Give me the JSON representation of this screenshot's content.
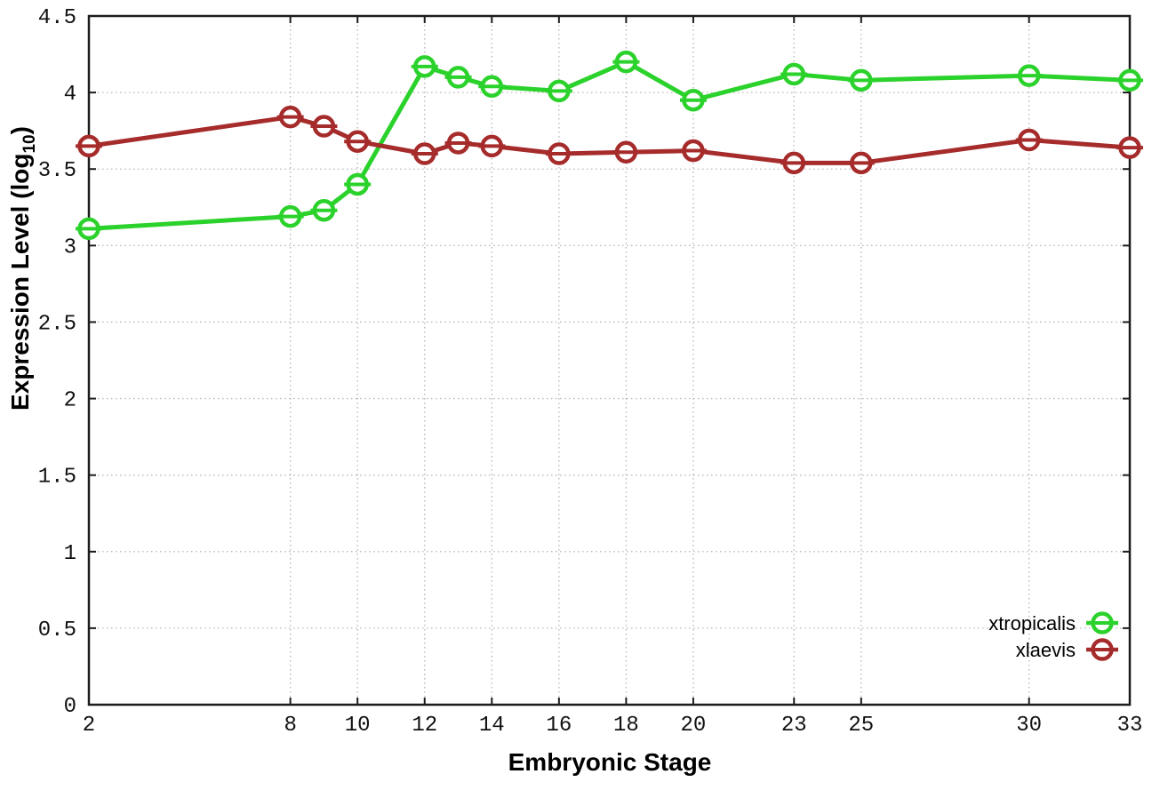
{
  "chart_data": {
    "type": "line",
    "title": "",
    "xlabel": "Embryonic Stage",
    "ylabel": {
      "prefix": "Expression Level (log",
      "sub": "10",
      "suffix": ")"
    },
    "x": [
      2,
      8,
      9,
      10,
      12,
      13,
      14,
      16,
      18,
      20,
      23,
      25,
      30,
      33
    ],
    "series": [
      {
        "name": "xtropicalis",
        "color": "#2bd22b",
        "marker": "open-circle-with-dash",
        "values": [
          3.11,
          3.19,
          3.23,
          3.4,
          4.17,
          4.1,
          4.04,
          4.01,
          4.2,
          3.95,
          4.12,
          4.08,
          4.11,
          4.08
        ]
      },
      {
        "name": "xlaevis",
        "color": "#a62b2b",
        "marker": "open-circle-with-dash",
        "values": [
          3.65,
          3.84,
          3.78,
          3.68,
          3.6,
          3.67,
          3.65,
          3.6,
          3.61,
          3.62,
          3.54,
          3.54,
          3.69,
          3.64
        ]
      }
    ],
    "xlim": [
      2,
      33
    ],
    "ylim": [
      0,
      4.5
    ],
    "xticks": [
      2,
      8,
      10,
      12,
      14,
      16,
      18,
      20,
      23,
      25,
      30,
      33
    ],
    "xtick_labels": [
      "2",
      "8",
      "10",
      "12",
      "14",
      "16",
      "18",
      "20",
      "23",
      "25",
      "30",
      "33"
    ],
    "yticks": [
      0,
      0.5,
      1,
      1.5,
      2,
      2.5,
      3,
      3.5,
      4,
      4.5
    ],
    "ytick_labels": [
      "0",
      "0.5",
      "1",
      "1.5",
      "2",
      "2.5",
      "3",
      "3.5",
      "4",
      "4.5"
    ],
    "grid": true,
    "grid_style": "dotted",
    "legend_position": "bottom-right-inside",
    "colors": {
      "background": "#ffffff",
      "grid": "#b5b5b5",
      "border": "#1c1c1c",
      "tick_text": "#111111",
      "label_text": "#000000"
    }
  }
}
